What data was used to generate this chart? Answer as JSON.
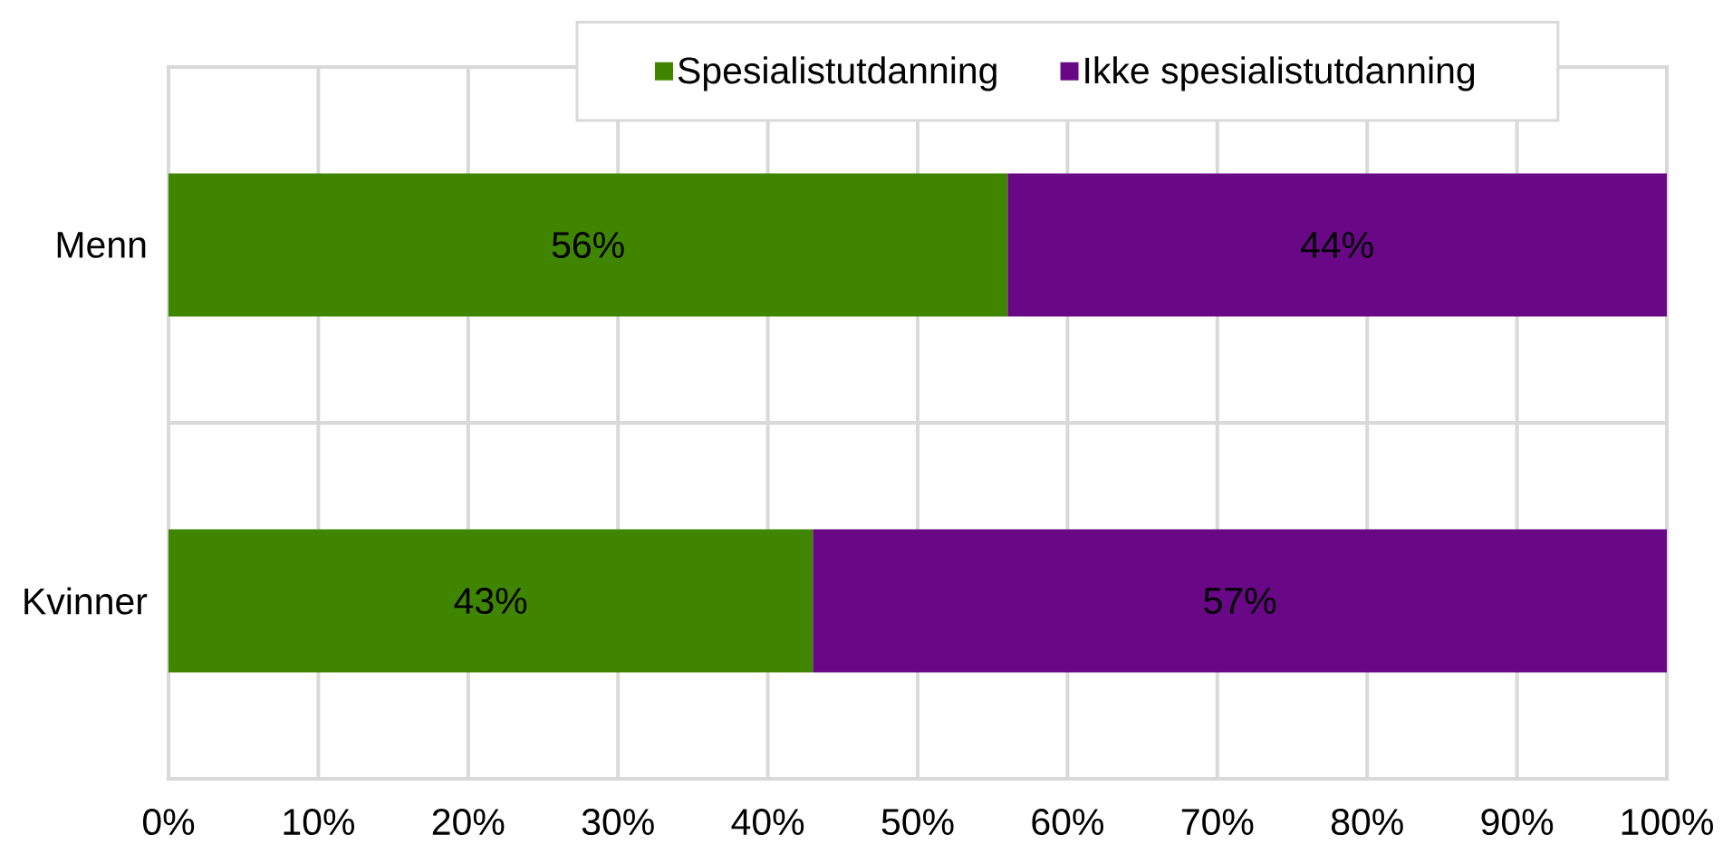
{
  "chart_data": {
    "type": "bar",
    "orientation": "horizontal",
    "stacked": true,
    "categories": [
      "Menn",
      "Kvinner"
    ],
    "series": [
      {
        "name": "Spesialistutdanning",
        "color": "#3f8500",
        "values": [
          56,
          43
        ],
        "value_labels": [
          "56%",
          "43%"
        ]
      },
      {
        "name": "Ikke spesialistutdanning",
        "color": "#690887",
        "values": [
          44,
          57
        ],
        "value_labels": [
          "44%",
          "57%"
        ]
      }
    ],
    "xlim": [
      0,
      100
    ],
    "xticks": [
      {
        "value": 0,
        "label": "0%"
      },
      {
        "value": 10,
        "label": "10%"
      },
      {
        "value": 20,
        "label": "20%"
      },
      {
        "value": 30,
        "label": "30%"
      },
      {
        "value": 40,
        "label": "40%"
      },
      {
        "value": 50,
        "label": "50%"
      },
      {
        "value": 60,
        "label": "60%"
      },
      {
        "value": 70,
        "label": "70%"
      },
      {
        "value": 80,
        "label": "80%"
      },
      {
        "value": 90,
        "label": "90%"
      },
      {
        "value": 100,
        "label": "100%"
      }
    ],
    "grid": true,
    "legend": "top"
  }
}
